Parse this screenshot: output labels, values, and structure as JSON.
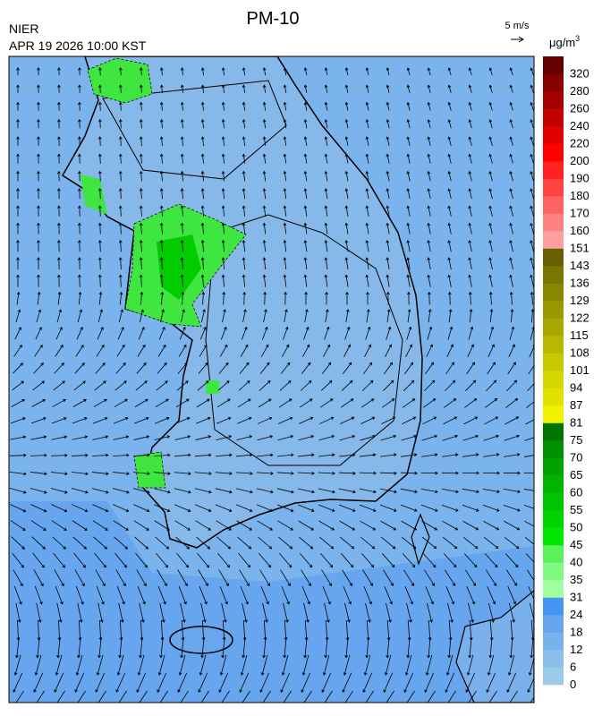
{
  "header": {
    "title": "PM-10",
    "source": "NIER",
    "timestamp": "APR 19 2026 10:00 KST",
    "wind_scale": "5 m/s"
  },
  "legend": {
    "unit": "μg/m",
    "unit_sup": "3",
    "labels": [
      "0",
      "6",
      "12",
      "18",
      "24",
      "31",
      "35",
      "40",
      "45",
      "50",
      "55",
      "60",
      "65",
      "70",
      "75",
      "81",
      "87",
      "94",
      "101",
      "108",
      "115",
      "122",
      "129",
      "136",
      "143",
      "151",
      "160",
      "170",
      "180",
      "190",
      "200",
      "220",
      "240",
      "260",
      "280",
      "320"
    ],
    "colors": [
      "#9ccbe6",
      "#8cc0ea",
      "#78b2ec",
      "#65a5ee",
      "#4396f2",
      "#a0ffa0",
      "#80fa80",
      "#5cf05c",
      "#00e600",
      "#00d400",
      "#00c400",
      "#00b400",
      "#00a400",
      "#009000",
      "#007400",
      "#f2f200",
      "#e2e200",
      "#d6d600",
      "#c8c800",
      "#b8b800",
      "#a8a800",
      "#989800",
      "#888800",
      "#787800",
      "#686000",
      "#ffa0a0",
      "#ff8282",
      "#ff6262",
      "#ff4242",
      "#ff2222",
      "#ff0000",
      "#e00000",
      "#c20000",
      "#a40000",
      "#860000",
      "#640000"
    ]
  }
}
